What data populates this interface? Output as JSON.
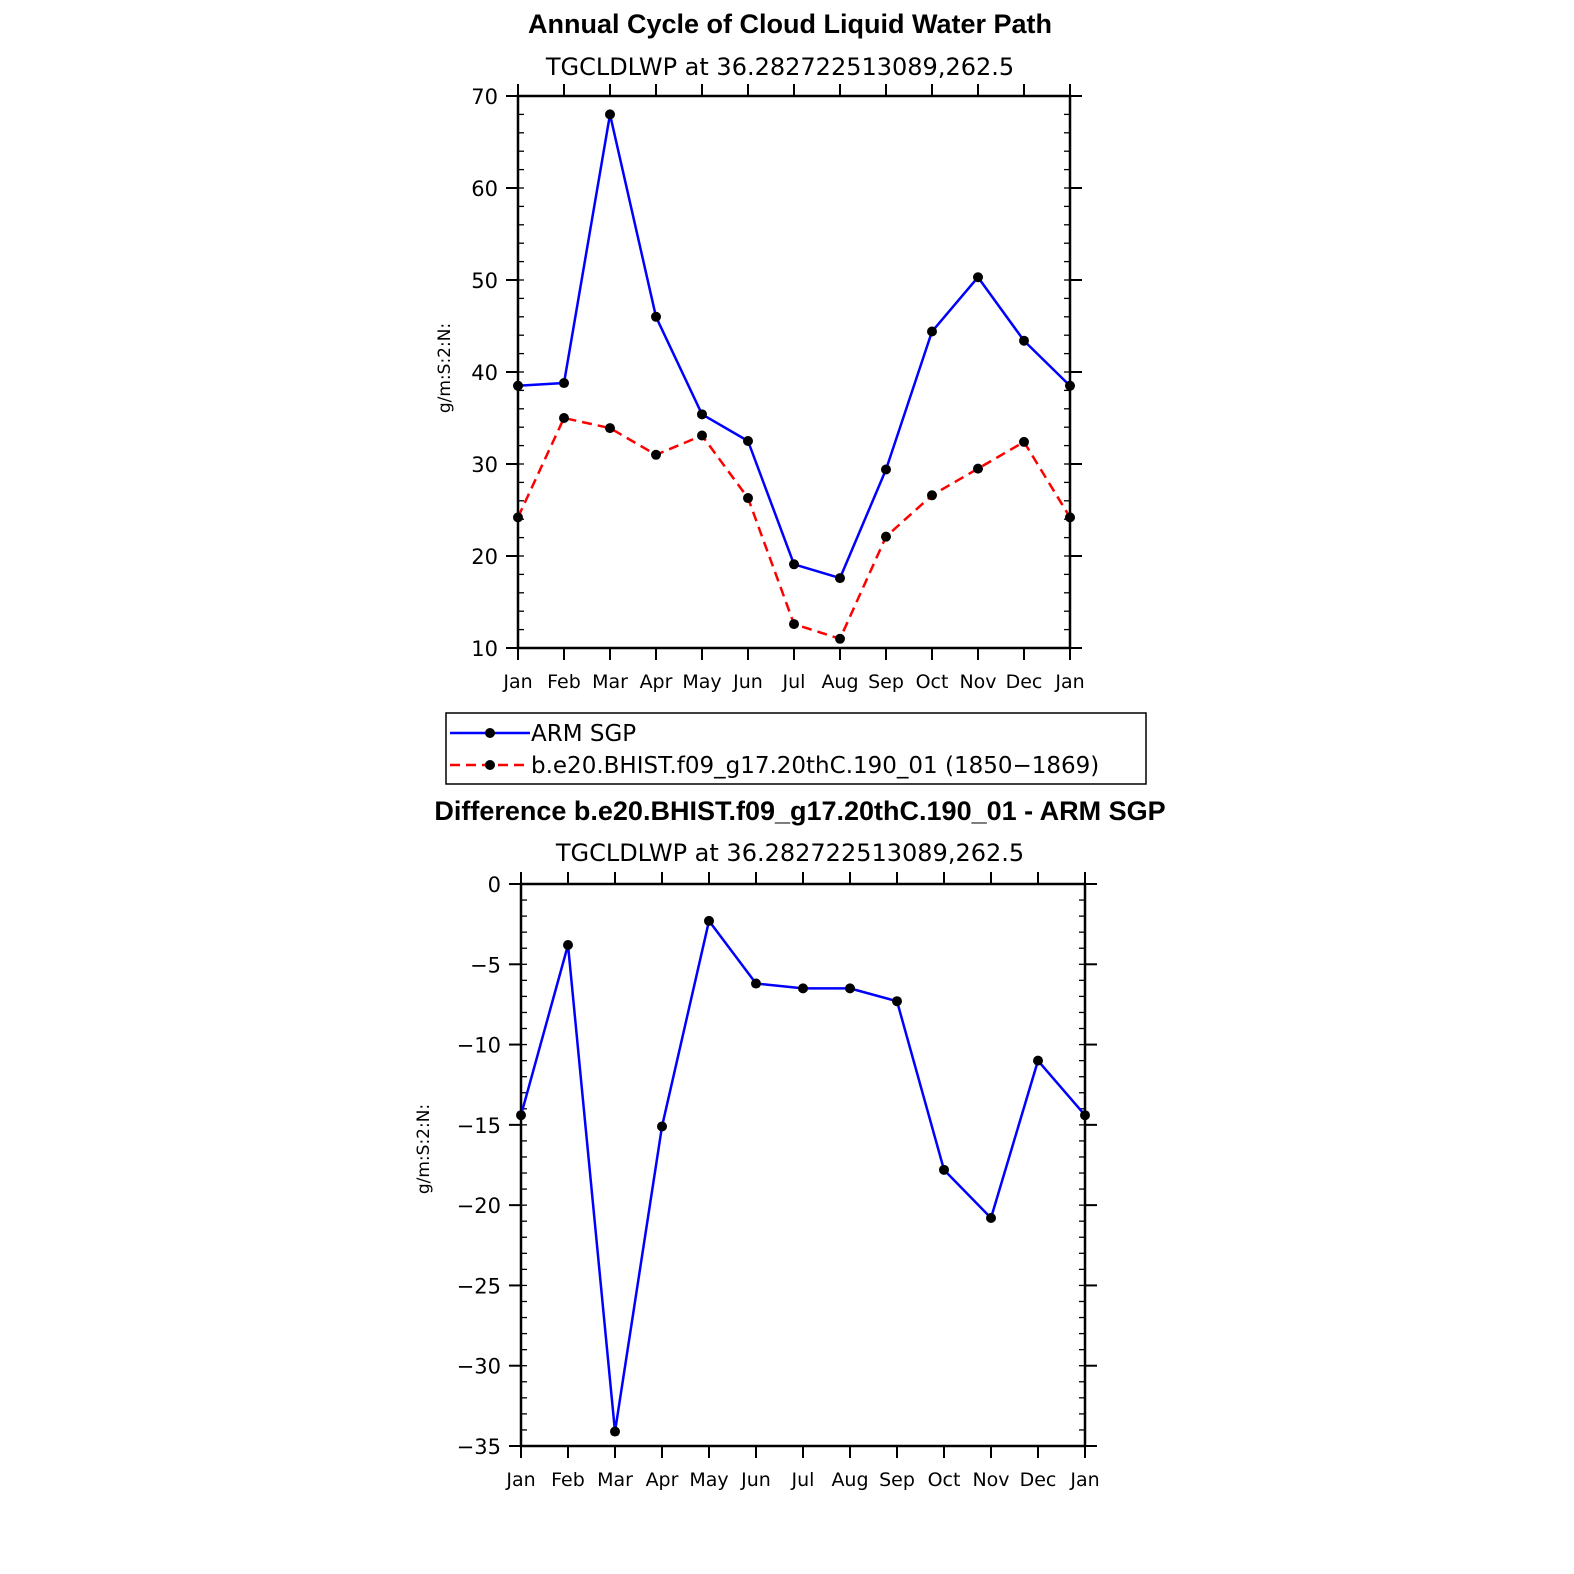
{
  "chart_data": [
    {
      "type": "line",
      "title": "Annual Cycle of Cloud Liquid Water Path",
      "subtitle": "TGCLDLWP  at  36.282722513089,262.5",
      "xlabel": "",
      "ylabel": "g/m:S:2:N:",
      "categories": [
        "Jan",
        "Feb",
        "Mar",
        "Apr",
        "May",
        "Jun",
        "Jul",
        "Aug",
        "Sep",
        "Oct",
        "Nov",
        "Dec",
        "Jan"
      ],
      "ylim": [
        10,
        70
      ],
      "yticks": [
        10,
        20,
        30,
        40,
        50,
        60,
        70
      ],
      "ytick_labels": [
        "10",
        "20",
        "30",
        "40",
        "50",
        "60",
        "70"
      ],
      "series": [
        {
          "name": "ARM  SGP",
          "color": "#0000ff",
          "dash": "solid",
          "values": [
            38.5,
            38.8,
            68.0,
            46.0,
            35.4,
            32.5,
            19.1,
            17.6,
            29.4,
            44.4,
            50.3,
            43.4,
            38.5
          ]
        },
        {
          "name": "b.e20.BHIST.f09_g17.20thC.190_01  (1850−1869)",
          "color": "#ff0000",
          "dash": "dashed",
          "values": [
            24.2,
            35.0,
            33.9,
            31.0,
            33.1,
            26.3,
            12.6,
            11.0,
            22.1,
            26.6,
            29.5,
            32.4,
            24.2
          ]
        }
      ],
      "legend": "below"
    },
    {
      "type": "line",
      "title": "Difference b.e20.BHIST.f09_g17.20thC.190_01 - ARM SGP",
      "subtitle": "TGCLDLWP  at  36.282722513089,262.5",
      "xlabel": "",
      "ylabel": "g/m:S:2:N:",
      "categories": [
        "Jan",
        "Feb",
        "Mar",
        "Apr",
        "May",
        "Jun",
        "Jul",
        "Aug",
        "Sep",
        "Oct",
        "Nov",
        "Dec",
        "Jan"
      ],
      "ylim": [
        -35,
        0
      ],
      "yticks": [
        0,
        -5,
        -10,
        -15,
        -20,
        -25,
        -30,
        -35
      ],
      "ytick_labels": [
        "0",
        "−5",
        "−10",
        "−15",
        "−20",
        "−25",
        "−30",
        "−35"
      ],
      "series": [
        {
          "name": "Difference",
          "color": "#0000ff",
          "dash": "solid",
          "values": [
            -14.4,
            -3.8,
            -34.1,
            -15.1,
            -2.3,
            -6.2,
            -6.5,
            -6.5,
            -7.3,
            -17.8,
            -20.8,
            -11.0,
            -14.4
          ]
        }
      ]
    }
  ]
}
